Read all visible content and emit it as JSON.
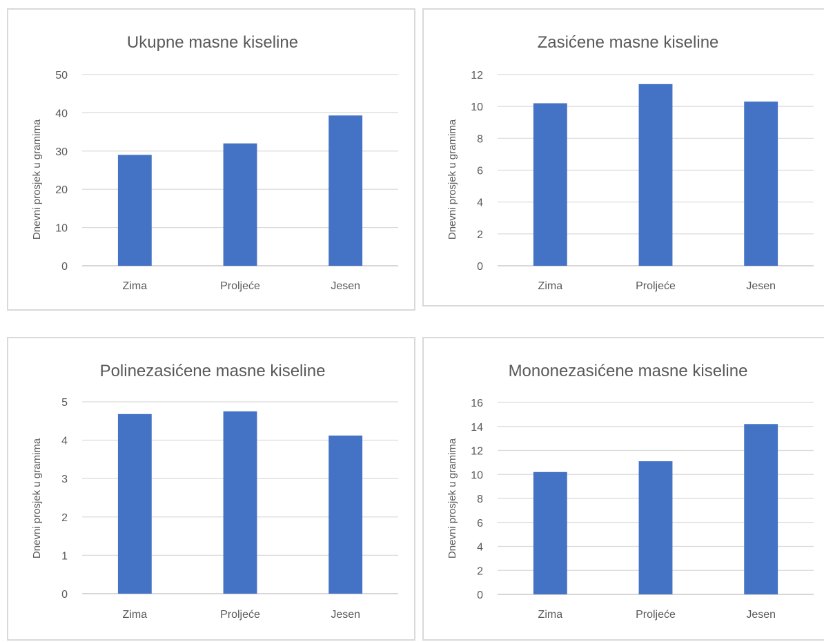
{
  "chart_data": [
    {
      "type": "bar",
      "title": "Ukupne masne kiseline",
      "ylabel": "Dnevni prosjek u gramima",
      "categories": [
        "Zima",
        "Proljeće",
        "Jesen"
      ],
      "values": [
        29,
        32,
        39.3
      ],
      "ylim": [
        0,
        50
      ],
      "yticks": [
        0,
        10,
        20,
        30,
        40,
        50
      ],
      "grid": true,
      "color": "#4472c4"
    },
    {
      "type": "bar",
      "title": "Zasićene masne kiseline",
      "ylabel": "Dnevni prosjek u gramima",
      "categories": [
        "Zima",
        "Proljeće",
        "Jesen"
      ],
      "values": [
        10.2,
        11.4,
        10.3
      ],
      "ylim": [
        0,
        12
      ],
      "yticks": [
        0,
        2,
        4,
        6,
        8,
        10,
        12
      ],
      "grid": true,
      "color": "#4472c4"
    },
    {
      "type": "bar",
      "title": "Polinezasićene masne kiseline",
      "ylabel": "Dnevni prosjek u gramima",
      "categories": [
        "Zima",
        "Proljeće",
        "Jesen"
      ],
      "values": [
        4.68,
        4.75,
        4.12
      ],
      "ylim": [
        0,
        5
      ],
      "yticks": [
        0,
        1,
        2,
        3,
        4,
        5
      ],
      "grid": true,
      "color": "#4472c4"
    },
    {
      "type": "bar",
      "title": "Mononezasićene masne kiseline",
      "ylabel": "Dnevni prosjek u gramima",
      "categories": [
        "Zima",
        "Proljeće",
        "Jesen"
      ],
      "values": [
        10.2,
        11.1,
        14.2
      ],
      "ylim": [
        0,
        16
      ],
      "yticks": [
        0,
        2,
        4,
        6,
        8,
        10,
        12,
        14,
        16
      ],
      "grid": true,
      "color": "#4472c4"
    }
  ]
}
